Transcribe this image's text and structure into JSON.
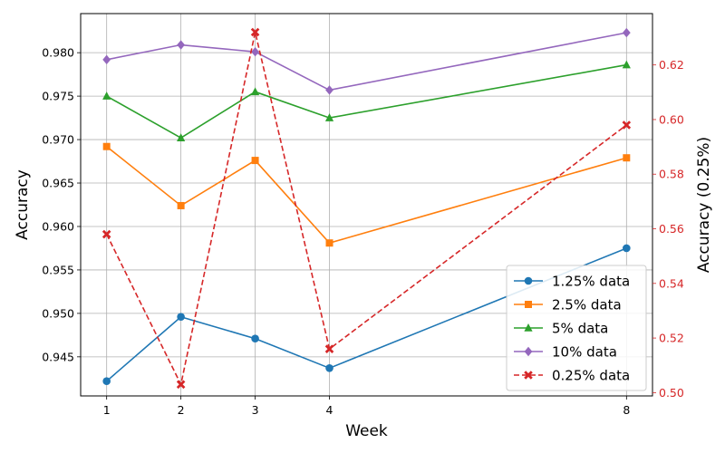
{
  "chart_data": {
    "type": "line",
    "xlabel": "Week",
    "ylabel": "Accuracy",
    "y2label": "Accuracy (0.25%)",
    "x": [
      1,
      2,
      3,
      4,
      8
    ],
    "x_ticks": [
      "1",
      "2",
      "3",
      "4",
      "8"
    ],
    "xlim": [
      0.65,
      8.35
    ],
    "ylim": [
      0.9405,
      0.9845
    ],
    "y2lim": [
      0.4988,
      0.6388
    ],
    "y_ticks": [
      0.945,
      0.95,
      0.955,
      0.96,
      0.965,
      0.97,
      0.975,
      0.98
    ],
    "y_tick_labels": [
      "0.945",
      "0.950",
      "0.955",
      "0.960",
      "0.965",
      "0.970",
      "0.975",
      "0.980"
    ],
    "y2_ticks": [
      0.5,
      0.52,
      0.54,
      0.56,
      0.58,
      0.6,
      0.62
    ],
    "y2_tick_labels": [
      "0.50",
      "0.52",
      "0.54",
      "0.56",
      "0.58",
      "0.60",
      "0.62"
    ],
    "y2_color": "#d62728",
    "grid": true,
    "legend_position": "bottom-right",
    "series": [
      {
        "name": "1.25% data",
        "axis": "left",
        "color": "#1f77b4",
        "marker": "circle",
        "dash": false,
        "values": [
          0.9422,
          0.9496,
          0.9471,
          0.9437,
          0.9575
        ]
      },
      {
        "name": "2.5% data",
        "axis": "left",
        "color": "#ff7f0e",
        "marker": "square",
        "dash": false,
        "values": [
          0.9692,
          0.9624,
          0.9676,
          0.9581,
          0.9679
        ]
      },
      {
        "name": "5% data",
        "axis": "left",
        "color": "#2ca02c",
        "marker": "triangle",
        "dash": false,
        "values": [
          0.975,
          0.9702,
          0.9755,
          0.9725,
          0.9786
        ]
      },
      {
        "name": "10% data",
        "axis": "left",
        "color": "#9467bd",
        "marker": "diamond",
        "dash": false,
        "values": [
          0.9792,
          0.9809,
          0.9801,
          0.9757,
          0.9823
        ]
      },
      {
        "name": "0.25% data",
        "axis": "right",
        "color": "#d62728",
        "marker": "x",
        "dash": true,
        "values": [
          0.558,
          0.503,
          0.632,
          0.516,
          0.598
        ]
      }
    ]
  }
}
